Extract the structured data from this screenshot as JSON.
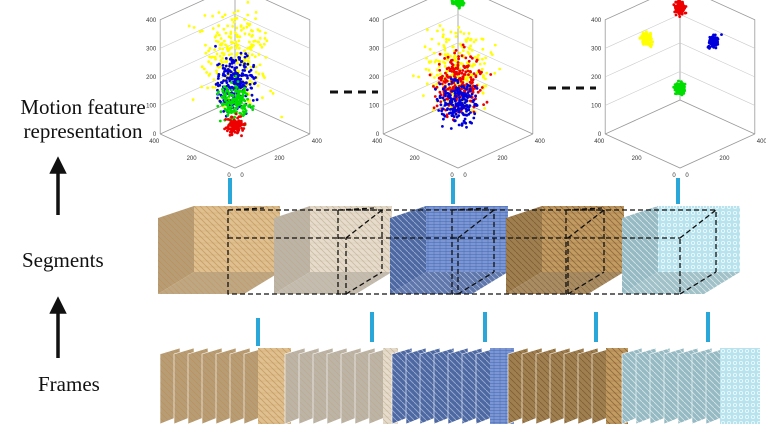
{
  "labels": {
    "motion": "Motion feature representation",
    "segments": "Segments",
    "frames": "Frames"
  },
  "plot_ticks": {
    "z": [
      "400",
      "300",
      "200",
      "100",
      "0"
    ],
    "x": [
      "400",
      "200",
      "0"
    ],
    "y": [
      "0",
      "200",
      "400"
    ]
  },
  "colors": {
    "arrow": "#111111",
    "connector": "#2aa7d9",
    "dashed": "#111111",
    "cluster_yellow": "#ffff00",
    "cluster_blue": "#0000dd",
    "cluster_green": "#00dd00",
    "cluster_red": "#ee0000"
  },
  "textures": [
    {
      "name": "wood-fabric",
      "base": "#e0c08e",
      "line": "#b58b54"
    },
    {
      "name": "beige-weave",
      "base": "#e7dccb",
      "line": "#b8a88c"
    },
    {
      "name": "blue-knit",
      "base": "#5f7fc6",
      "line": "#c9d7f2"
    },
    {
      "name": "brown-wicker",
      "base": "#c29b62",
      "line": "#6e4a22"
    },
    {
      "name": "water-drops",
      "base": "#b7e3ee",
      "line": "#ffffff"
    }
  ]
}
